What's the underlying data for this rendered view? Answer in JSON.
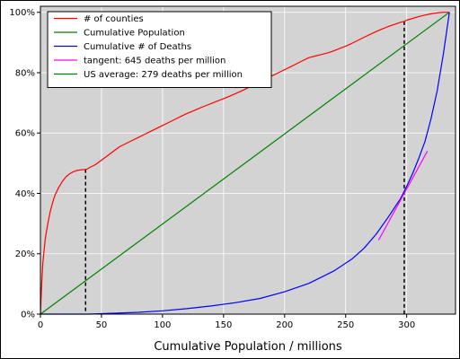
{
  "chart_data": {
    "type": "line",
    "title": "",
    "xlabel": "Cumulative Population / millions",
    "ylabel": "",
    "xlim": [
      0,
      340
    ],
    "ylim": [
      0,
      102
    ],
    "background": "#d3d3d3",
    "grid": true,
    "legend_position": "top-left",
    "x_ticks": [
      {
        "value": 0,
        "label": "0"
      },
      {
        "value": 50,
        "label": "50"
      },
      {
        "value": 100,
        "label": "100"
      },
      {
        "value": 150,
        "label": "150"
      },
      {
        "value": 200,
        "label": "200"
      },
      {
        "value": 250,
        "label": "250"
      },
      {
        "value": 300,
        "label": "300"
      }
    ],
    "y_ticks": [
      {
        "value": 0,
        "label": "0%"
      },
      {
        "value": 20,
        "label": "20%"
      },
      {
        "value": 40,
        "label": "40%"
      },
      {
        "value": 60,
        "label": "60%"
      },
      {
        "value": 80,
        "label": "80%"
      },
      {
        "value": 100,
        "label": "100%"
      }
    ],
    "series": [
      {
        "name": "# of counties",
        "color": "#ff0000",
        "x": [
          0,
          1,
          2,
          4,
          6,
          8,
          10,
          12,
          15,
          18,
          21,
          24,
          27,
          30,
          33,
          36,
          38,
          40,
          45,
          50,
          55,
          60,
          65,
          70,
          75,
          80,
          85,
          90,
          95,
          100,
          105,
          110,
          115,
          120,
          125,
          130,
          135,
          140,
          145,
          150,
          155,
          160,
          165,
          170,
          175,
          180,
          185,
          190,
          195,
          200,
          205,
          210,
          215,
          220,
          225,
          230,
          235,
          240,
          245,
          250,
          255,
          260,
          265,
          270,
          275,
          280,
          285,
          290,
          295,
          298,
          300,
          305,
          310,
          315,
          320,
          325,
          330,
          335
        ],
        "y": [
          0,
          10,
          17,
          25,
          30,
          34,
          37,
          39.5,
          42,
          44,
          45.5,
          46.5,
          47.2,
          47.6,
          47.8,
          47.9,
          48,
          48.5,
          49.5,
          51,
          52.5,
          54,
          55.5,
          56.5,
          57.5,
          58.5,
          59.5,
          60.5,
          61.5,
          62.5,
          63.5,
          64.5,
          65.5,
          66.5,
          67.3,
          68.2,
          69,
          69.8,
          70.6,
          71.4,
          72.2,
          73.1,
          74,
          75,
          76,
          77,
          78,
          79,
          80,
          81,
          82,
          83,
          84,
          85,
          85.5,
          86,
          86.5,
          87.2,
          88,
          88.8,
          89.7,
          90.7,
          91.7,
          92.7,
          93.6,
          94.5,
          95.3,
          96,
          96.7,
          97,
          97.4,
          98,
          98.6,
          99.1,
          99.5,
          99.8,
          100,
          100
        ]
      },
      {
        "name": "Cumulative Population",
        "color": "#008000",
        "x": [
          0,
          335
        ],
        "y": [
          0,
          100
        ]
      },
      {
        "name": "Cumulative # of Deaths",
        "color": "#0000ff",
        "x": [
          0,
          20,
          40,
          60,
          80,
          100,
          120,
          140,
          160,
          180,
          200,
          220,
          240,
          255,
          265,
          275,
          285,
          295,
          300,
          305,
          310,
          315,
          320,
          325,
          330,
          335
        ],
        "y": [
          0,
          0,
          0,
          0.3,
          0.6,
          1.1,
          1.8,
          2.7,
          3.8,
          5.2,
          7.4,
          10.2,
          14.2,
          18.2,
          21.8,
          26.5,
          32.2,
          38.3,
          42.3,
          46.7,
          51.7,
          57.2,
          64.8,
          74,
          86,
          100
        ]
      },
      {
        "name": "tangent: 645 deaths per million",
        "color": "#ff00ff",
        "x": [
          277,
          317
        ],
        "y": [
          24.5,
          54
        ]
      },
      {
        "name": "US average: 279 deaths per million",
        "color": "#008000",
        "x": [
          0,
          335
        ],
        "y": [
          0,
          100
        ],
        "legend_only": true
      }
    ],
    "reference_lines": [
      {
        "x": 37,
        "y_top": 48,
        "style": "dashed",
        "color": "#000000"
      },
      {
        "x": 298,
        "y_top": 97,
        "style": "dashed",
        "color": "#000000"
      }
    ]
  }
}
